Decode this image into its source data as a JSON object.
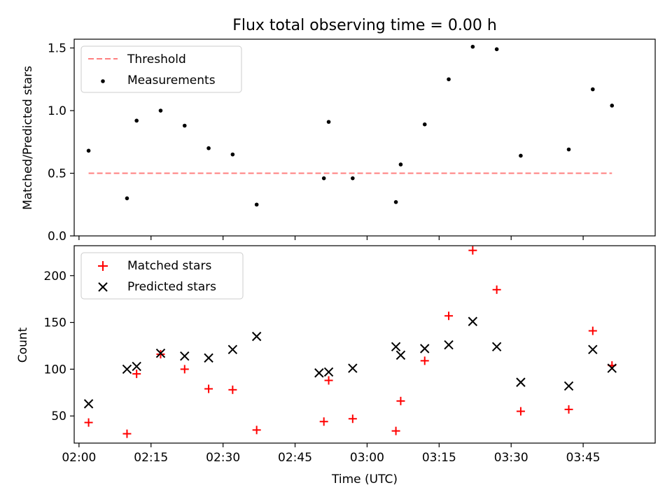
{
  "colors": {
    "threshold": "#ff7f7f",
    "measurements": "#000000",
    "matched": "#ff0000",
    "predicted": "#000000",
    "axes": "#000000",
    "background": "#ffffff"
  },
  "chart_data": [
    {
      "type": "scatter",
      "title": "Flux total observing time = 0.00 h",
      "xlabel": "",
      "ylabel": "Matched/Predicted stars",
      "xlim": [
        "01:59",
        "04:00"
      ],
      "ylim": [
        0,
        1.57
      ],
      "yticks": [
        0.0,
        0.5,
        1.0,
        1.5
      ],
      "ytick_labels": [
        "0.0",
        "0.5",
        "1.0",
        "1.5"
      ],
      "show_x_tick_labels": false,
      "grid": false,
      "legend_position": "top-left",
      "threshold": {
        "name": "Threshold",
        "value": 0.5,
        "x_range": [
          "02:02",
          "03:51"
        ]
      },
      "series": [
        {
          "name": "Measurements",
          "marker": "dot",
          "x": [
            "02:02",
            "02:10",
            "02:12",
            "02:17",
            "02:22",
            "02:27",
            "02:32",
            "02:37",
            "02:51",
            "02:52",
            "02:57",
            "03:06",
            "03:07",
            "03:12",
            "03:17",
            "03:22",
            "03:27",
            "03:32",
            "03:42",
            "03:47",
            "03:51"
          ],
          "y": [
            0.68,
            0.3,
            0.92,
            1.0,
            0.88,
            0.7,
            0.65,
            0.25,
            0.46,
            0.91,
            0.46,
            0.27,
            0.57,
            0.89,
            1.25,
            1.51,
            1.49,
            0.64,
            0.69,
            1.17,
            1.04
          ]
        }
      ]
    },
    {
      "type": "scatter",
      "title": "",
      "xlabel": "Time (UTC)",
      "ylabel": "Count",
      "xlim": [
        "01:59",
        "04:00"
      ],
      "ylim": [
        21,
        232
      ],
      "yticks": [
        50,
        100,
        150,
        200
      ],
      "ytick_labels": [
        "50",
        "100",
        "150",
        "200"
      ],
      "xticks": [
        "02:00",
        "02:15",
        "02:30",
        "02:45",
        "03:00",
        "03:15",
        "03:30",
        "03:45"
      ],
      "grid": false,
      "legend_position": "top-left",
      "series": [
        {
          "name": "Matched stars",
          "marker": "plus",
          "x": [
            "02:02",
            "02:10",
            "02:12",
            "02:17",
            "02:22",
            "02:27",
            "02:32",
            "02:37",
            "02:51",
            "02:52",
            "02:57",
            "03:06",
            "03:07",
            "03:12",
            "03:17",
            "03:22",
            "03:27",
            "03:32",
            "03:42",
            "03:47",
            "03:51"
          ],
          "y": [
            43,
            31,
            95,
            116,
            100,
            79,
            78,
            35,
            44,
            88,
            47,
            34,
            66,
            109,
            157,
            227,
            185,
            55,
            57,
            141,
            104
          ]
        },
        {
          "name": "Predicted stars",
          "marker": "x",
          "x": [
            "02:02",
            "02:10",
            "02:12",
            "02:17",
            "02:22",
            "02:27",
            "02:32",
            "02:37",
            "02:50",
            "02:52",
            "02:57",
            "03:06",
            "03:07",
            "03:12",
            "03:17",
            "03:22",
            "03:27",
            "03:32",
            "03:42",
            "03:47",
            "03:51"
          ],
          "y": [
            63,
            100,
            103,
            117,
            114,
            112,
            121,
            135,
            96,
            97,
            101,
            124,
            115,
            122,
            126,
            151,
            124,
            86,
            82,
            121,
            101
          ]
        }
      ]
    }
  ]
}
